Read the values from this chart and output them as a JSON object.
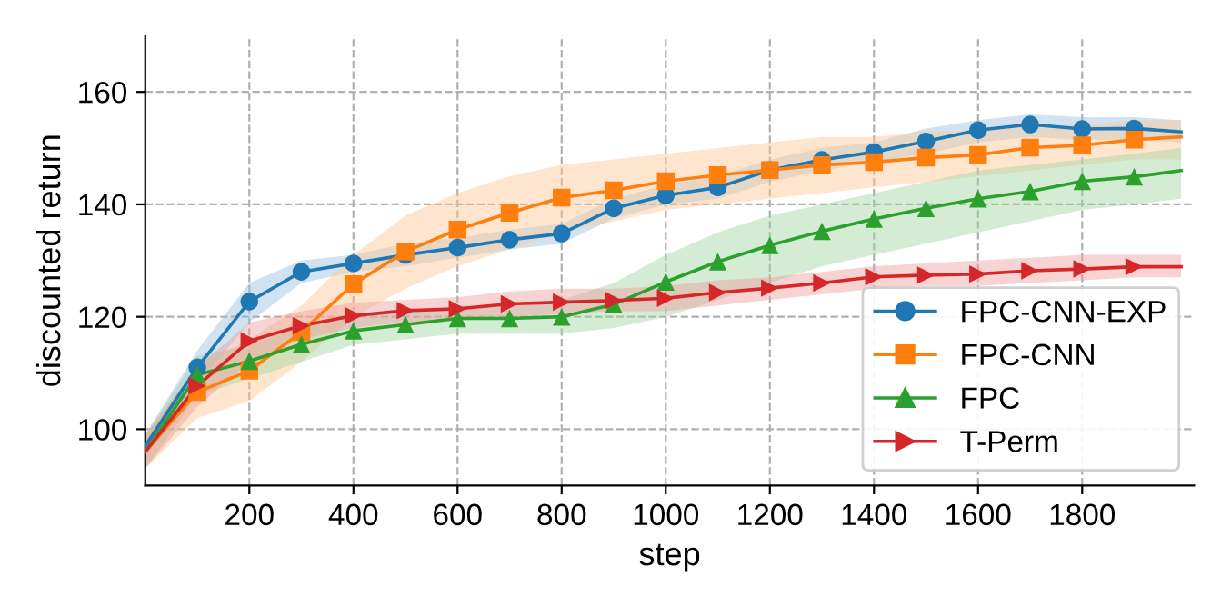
{
  "chart_data": {
    "type": "line",
    "xlabel": "step",
    "ylabel": "discounted return",
    "x": [
      0,
      100,
      200,
      300,
      400,
      500,
      600,
      700,
      800,
      900,
      1000,
      1100,
      1200,
      1300,
      1400,
      1500,
      1600,
      1700,
      1800,
      1900,
      1990
    ],
    "xlim": [
      0,
      2015
    ],
    "ylim": [
      90,
      170
    ],
    "xticks": [
      200,
      400,
      600,
      800,
      1000,
      1200,
      1400,
      1600,
      1800
    ],
    "yticks": [
      100,
      120,
      140,
      160
    ],
    "grid": true,
    "legend": "bottom right",
    "line_style": "solid",
    "series": [
      {
        "name": "FPC-CNN-EXP",
        "color": "#1f77b4",
        "marker": "circle",
        "values": [
          97,
          111,
          122.7,
          128,
          129.5,
          131,
          132.3,
          133.7,
          134.8,
          139.3,
          141.6,
          143,
          146.1,
          147.9,
          149.3,
          151.2,
          153.2,
          154.2,
          153.4,
          153.5,
          152.9
        ],
        "lower": [
          95,
          108,
          119,
          126,
          128,
          129,
          130.5,
          132,
          133,
          137.5,
          140,
          141,
          144,
          146,
          147.5,
          149,
          151,
          152,
          151.5,
          151.5,
          151
        ],
        "upper": [
          99,
          114,
          126,
          130,
          131,
          133,
          134,
          135.5,
          136.5,
          141,
          143.5,
          145,
          148,
          150,
          151,
          153.5,
          155,
          156,
          155.5,
          155.5,
          155
        ]
      },
      {
        "name": "FPC-CNN",
        "color": "#ff7f0e",
        "marker": "square",
        "values": [
          96,
          106.6,
          110.4,
          117.3,
          125.8,
          131.6,
          135.5,
          138.5,
          141.2,
          142.5,
          144.1,
          145.2,
          146.1,
          147,
          147.5,
          148.3,
          148.8,
          150.1,
          150.5,
          151.5,
          152
        ],
        "lower": [
          93,
          102,
          105,
          112,
          120,
          125,
          129,
          132,
          135,
          137,
          139,
          140,
          141,
          142,
          143,
          144,
          145,
          146,
          147,
          148,
          148
        ],
        "upper": [
          99,
          111,
          116,
          122,
          131,
          138,
          142,
          145,
          147,
          148,
          149,
          150,
          151,
          152,
          152,
          153,
          153,
          154,
          154,
          155,
          155
        ]
      },
      {
        "name": "FPC",
        "color": "#2ca02c",
        "marker": "triangle",
        "values": [
          96,
          109.7,
          112.1,
          115.1,
          117.5,
          118.6,
          119.7,
          119.7,
          120,
          122.2,
          126.2,
          129.8,
          132.7,
          135.2,
          137.4,
          139.3,
          141,
          142.3,
          144.1,
          144.9,
          146
        ],
        "lower": [
          93,
          106,
          109,
          112,
          115,
          116,
          117,
          117,
          117,
          118,
          120,
          123,
          126,
          129,
          131,
          133,
          135,
          137,
          139,
          140,
          141
        ],
        "upper": [
          99,
          113,
          115,
          118,
          120,
          121,
          122,
          122,
          123,
          126,
          131,
          135,
          138,
          140,
          142,
          144,
          146,
          147,
          148,
          149,
          150
        ]
      },
      {
        "name": "T-Perm",
        "color": "#d62728",
        "marker": "triangle_right",
        "values": [
          96,
          107.7,
          115.7,
          118.4,
          120.2,
          121.1,
          121.4,
          122.3,
          122.6,
          122.9,
          123.3,
          124.3,
          125.1,
          126,
          127.1,
          127.4,
          127.6,
          128.2,
          128.5,
          128.9,
          128.9
        ],
        "lower": [
          93,
          104,
          112,
          116,
          118,
          119,
          119.5,
          120,
          120.5,
          121,
          121,
          122,
          123,
          124,
          125,
          125.5,
          125.5,
          126,
          126.5,
          127,
          127
        ],
        "upper": [
          99,
          111,
          119,
          121,
          122.5,
          123,
          123.5,
          124.5,
          125,
          125,
          125.5,
          126.5,
          127,
          128,
          129,
          129.5,
          130,
          130.5,
          131,
          131,
          131
        ]
      }
    ]
  }
}
